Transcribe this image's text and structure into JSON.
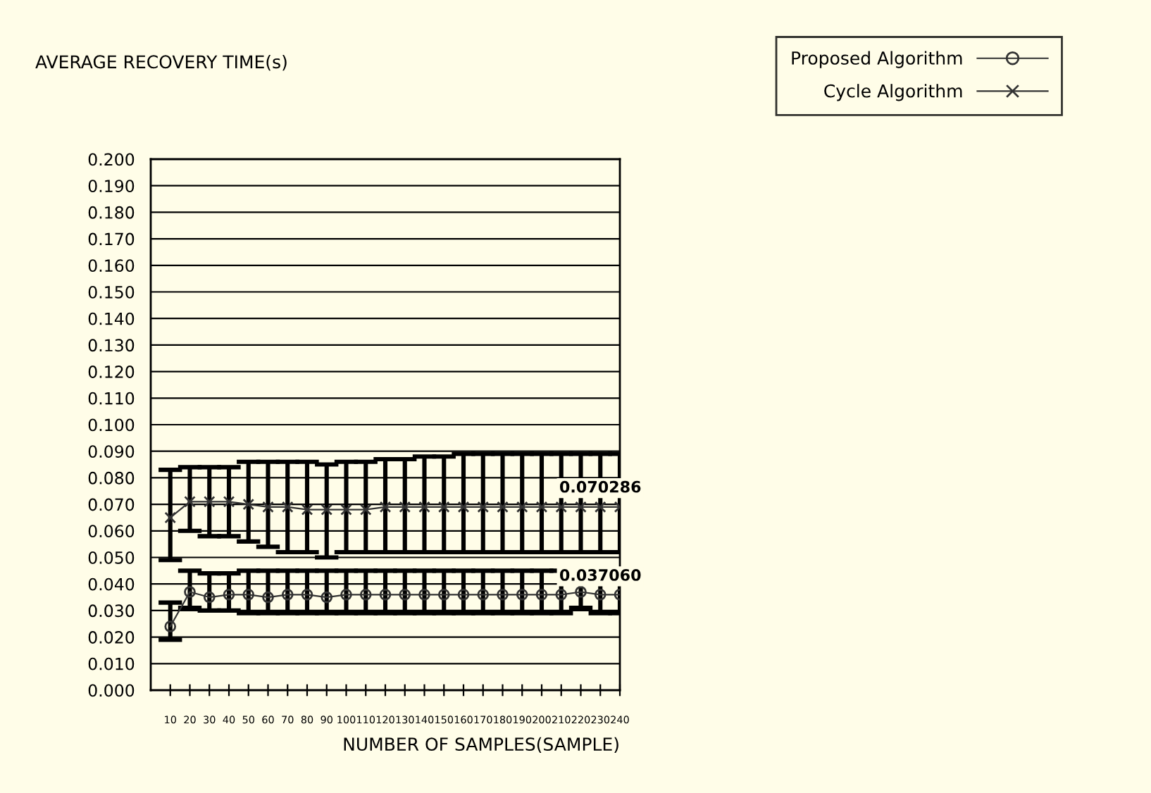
{
  "chart_data": {
    "type": "line",
    "ylabel": "AVERAGE RECOVERY TIME(s)",
    "xlabel": "NUMBER OF SAMPLES(SAMPLE)",
    "x": [
      10,
      20,
      30,
      40,
      50,
      60,
      70,
      80,
      90,
      100,
      110,
      120,
      130,
      140,
      150,
      160,
      170,
      180,
      190,
      200,
      210,
      220,
      230,
      240
    ],
    "series": [
      {
        "name": "Proposed Algorithm",
        "color": "#333333",
        "marker": "circle",
        "values": [
          0.024,
          0.037,
          0.035,
          0.036,
          0.036,
          0.035,
          0.036,
          0.036,
          0.035,
          0.036,
          0.036,
          0.036,
          0.036,
          0.036,
          0.036,
          0.036,
          0.036,
          0.036,
          0.036,
          0.036,
          0.036,
          0.037,
          0.036,
          0.036
        ],
        "errors": [
          [
            0.019,
            0.033
          ],
          [
            0.031,
            0.045
          ],
          [
            0.03,
            0.044
          ],
          [
            0.03,
            0.044
          ],
          [
            0.029,
            0.045
          ],
          [
            0.029,
            0.045
          ],
          [
            0.029,
            0.045
          ],
          [
            0.029,
            0.045
          ],
          [
            0.029,
            0.045
          ],
          [
            0.029,
            0.045
          ],
          [
            0.029,
            0.045
          ],
          [
            0.029,
            0.045
          ],
          [
            0.029,
            0.045
          ],
          [
            0.029,
            0.045
          ],
          [
            0.029,
            0.045
          ],
          [
            0.029,
            0.045
          ],
          [
            0.029,
            0.045
          ],
          [
            0.029,
            0.045
          ],
          [
            0.029,
            0.045
          ],
          [
            0.029,
            0.045
          ],
          [
            0.029,
            0.045
          ],
          [
            0.031,
            0.045
          ],
          [
            0.029,
            0.045
          ],
          [
            0.029,
            0.045
          ]
        ]
      },
      {
        "name": "Cycle Algorithm",
        "color": "#333333",
        "marker": "cross",
        "values": [
          0.065,
          0.071,
          0.071,
          0.071,
          0.07,
          0.069,
          0.069,
          0.068,
          0.068,
          0.068,
          0.068,
          0.069,
          0.069,
          0.069,
          0.069,
          0.069,
          0.069,
          0.069,
          0.069,
          0.069,
          0.069,
          0.069,
          0.069,
          0.069
        ],
        "errors": [
          [
            0.049,
            0.083
          ],
          [
            0.06,
            0.084
          ],
          [
            0.058,
            0.084
          ],
          [
            0.058,
            0.084
          ],
          [
            0.056,
            0.086
          ],
          [
            0.054,
            0.086
          ],
          [
            0.052,
            0.086
          ],
          [
            0.052,
            0.086
          ],
          [
            0.05,
            0.085
          ],
          [
            0.052,
            0.086
          ],
          [
            0.052,
            0.086
          ],
          [
            0.052,
            0.087
          ],
          [
            0.052,
            0.087
          ],
          [
            0.052,
            0.088
          ],
          [
            0.052,
            0.088
          ],
          [
            0.052,
            0.089
          ],
          [
            0.052,
            0.089
          ],
          [
            0.052,
            0.089
          ],
          [
            0.052,
            0.089
          ],
          [
            0.052,
            0.089
          ],
          [
            0.052,
            0.089
          ],
          [
            0.052,
            0.089
          ],
          [
            0.052,
            0.089
          ],
          [
            0.052,
            0.089
          ]
        ]
      }
    ],
    "annotations": [
      {
        "text": "0.070286",
        "x": 230,
        "y": 0.070286
      },
      {
        "text": "0.037060",
        "x": 230,
        "y": 0.03706
      }
    ],
    "xlim": [
      0,
      240
    ],
    "xticks": [
      10,
      20,
      30,
      40,
      50,
      60,
      70,
      80,
      90,
      100,
      110,
      120,
      130,
      140,
      150,
      160,
      170,
      180,
      190,
      200,
      210,
      220,
      230,
      240
    ],
    "ylim": [
      0,
      0.2
    ],
    "yticks": [
      {
        "value": 0,
        "label": "0.000"
      },
      {
        "value": 0.01,
        "label": "0.010"
      },
      {
        "value": 0.02,
        "label": "0.020"
      },
      {
        "value": 0.03,
        "label": "0.030"
      },
      {
        "value": 0.04,
        "label": "0.040"
      },
      {
        "value": 0.05,
        "label": "0.050"
      },
      {
        "value": 0.06,
        "label": "0.060"
      },
      {
        "value": 0.07,
        "label": "0.070"
      },
      {
        "value": 0.08,
        "label": "0.080"
      },
      {
        "value": 0.09,
        "label": "0.090"
      },
      {
        "value": 0.1,
        "label": "0.100"
      },
      {
        "value": 0.11,
        "label": "0.110"
      },
      {
        "value": 0.12,
        "label": "0.120"
      },
      {
        "value": 0.13,
        "label": "0.130"
      },
      {
        "value": 0.14,
        "label": "0.140"
      },
      {
        "value": 0.15,
        "label": "0.150"
      },
      {
        "value": 0.16,
        "label": "0.160"
      },
      {
        "value": 0.17,
        "label": "0.170"
      },
      {
        "value": 0.18,
        "label": "0.180"
      },
      {
        "value": 0.19,
        "label": "0.190"
      },
      {
        "value": 0.2,
        "label": "0.200"
      }
    ],
    "grid": "y",
    "legend": "top right"
  }
}
